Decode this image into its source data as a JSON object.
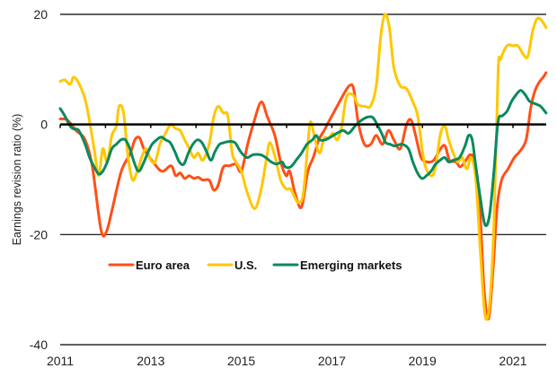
{
  "chart_data": {
    "type": "line",
    "title": "",
    "xlabel": "",
    "ylabel": "Earnings revision ratio (%)",
    "xlim": [
      2011.0,
      2021.73
    ],
    "ylim": [
      -40,
      20
    ],
    "x_ticks": [
      2011,
      2013,
      2015,
      2017,
      2019,
      2021
    ],
    "x_tick_labels": [
      "2011",
      "2013",
      "2015",
      "2017",
      "2019",
      "2021"
    ],
    "y_ticks": [
      20,
      0,
      -20,
      -40
    ],
    "y_tick_labels": [
      "20",
      "0",
      "-20",
      "-40"
    ],
    "grid": "horizontal",
    "zero_line": true,
    "legend": {
      "placement": "lower-left-inside",
      "entries": [
        "Euro area",
        "U.S.",
        "Emerging markets"
      ]
    },
    "series": [
      {
        "name": "Euro area",
        "color": "#ff4f17",
        "points": [
          [
            2011.0,
            1.0
          ],
          [
            2011.16,
            0.8
          ],
          [
            2011.35,
            -1.1
          ],
          [
            2011.55,
            -2.8
          ],
          [
            2011.71,
            -7.7
          ],
          [
            2011.9,
            -19.1
          ],
          [
            2012.02,
            -19.5
          ],
          [
            2012.16,
            -15.0
          ],
          [
            2012.35,
            -8.5
          ],
          [
            2012.55,
            -5.2
          ],
          [
            2012.65,
            -2.8
          ],
          [
            2012.75,
            -2.4
          ],
          [
            2012.85,
            -4.4
          ],
          [
            2013.05,
            -6.8
          ],
          [
            2013.25,
            -8.5
          ],
          [
            2013.45,
            -7.5
          ],
          [
            2013.55,
            -9.3
          ],
          [
            2013.65,
            -8.8
          ],
          [
            2013.75,
            -9.8
          ],
          [
            2013.85,
            -9.3
          ],
          [
            2013.95,
            -9.8
          ],
          [
            2014.05,
            -9.6
          ],
          [
            2014.15,
            -10.1
          ],
          [
            2014.29,
            -10.1
          ],
          [
            2014.39,
            -11.9
          ],
          [
            2014.49,
            -11.0
          ],
          [
            2014.6,
            -7.8
          ],
          [
            2014.74,
            -7.5
          ],
          [
            2014.88,
            -7.2
          ],
          [
            2015.0,
            -8.5
          ],
          [
            2015.14,
            -3.6
          ],
          [
            2015.28,
            0.5
          ],
          [
            2015.44,
            4.1
          ],
          [
            2015.58,
            1.3
          ],
          [
            2015.74,
            -2.0
          ],
          [
            2015.87,
            -6.8
          ],
          [
            2015.99,
            -9.3
          ],
          [
            2016.07,
            -8.5
          ],
          [
            2016.19,
            -12.6
          ],
          [
            2016.33,
            -15.0
          ],
          [
            2016.47,
            -8.5
          ],
          [
            2016.59,
            -6.0
          ],
          [
            2016.71,
            -2.8
          ],
          [
            2016.83,
            -1.1
          ],
          [
            2016.93,
            0.5
          ],
          [
            2017.09,
            2.9
          ],
          [
            2017.22,
            4.9
          ],
          [
            2017.38,
            7.0
          ],
          [
            2017.48,
            6.5
          ],
          [
            2017.58,
            0.5
          ],
          [
            2017.72,
            -3.6
          ],
          [
            2017.86,
            -3.6
          ],
          [
            2017.98,
            -2.0
          ],
          [
            2018.12,
            -3.6
          ],
          [
            2018.25,
            -1.1
          ],
          [
            2018.37,
            -2.8
          ],
          [
            2018.51,
            -4.4
          ],
          [
            2018.65,
            0.0
          ],
          [
            2018.75,
            0.8
          ],
          [
            2018.85,
            -2.0
          ],
          [
            2018.97,
            -6.0
          ],
          [
            2019.11,
            -6.8
          ],
          [
            2019.25,
            -6.5
          ],
          [
            2019.4,
            -4.4
          ],
          [
            2019.5,
            -3.9
          ],
          [
            2019.6,
            -6.5
          ],
          [
            2019.74,
            -6.8
          ],
          [
            2019.84,
            -7.7
          ],
          [
            2019.96,
            -6.5
          ],
          [
            2020.06,
            -5.5
          ],
          [
            2020.16,
            -6.8
          ],
          [
            2020.26,
            -14.1
          ],
          [
            2020.36,
            -29.6
          ],
          [
            2020.46,
            -35.3
          ],
          [
            2020.56,
            -26.4
          ],
          [
            2020.65,
            -15.0
          ],
          [
            2020.75,
            -10.1
          ],
          [
            2020.89,
            -8.1
          ],
          [
            2021.03,
            -6.0
          ],
          [
            2021.15,
            -4.9
          ],
          [
            2021.29,
            -2.8
          ],
          [
            2021.39,
            2.9
          ],
          [
            2021.49,
            6.2
          ],
          [
            2021.59,
            7.8
          ],
          [
            2021.67,
            8.6
          ],
          [
            2021.73,
            9.4
          ]
        ]
      },
      {
        "name": "U.S.",
        "color": "#ffc700",
        "points": [
          [
            2011.0,
            7.8
          ],
          [
            2011.1,
            8.1
          ],
          [
            2011.22,
            7.3
          ],
          [
            2011.3,
            8.6
          ],
          [
            2011.41,
            7.5
          ],
          [
            2011.55,
            4.6
          ],
          [
            2011.65,
            0.5
          ],
          [
            2011.75,
            -4.4
          ],
          [
            2011.85,
            -9.3
          ],
          [
            2011.94,
            -4.4
          ],
          [
            2012.04,
            -6.8
          ],
          [
            2012.14,
            -2.0
          ],
          [
            2012.24,
            -0.3
          ],
          [
            2012.3,
            3.3
          ],
          [
            2012.4,
            2.1
          ],
          [
            2012.5,
            -6.0
          ],
          [
            2012.6,
            -10.1
          ],
          [
            2012.7,
            -8.5
          ],
          [
            2012.8,
            -6.0
          ],
          [
            2012.9,
            -4.4
          ],
          [
            2013.0,
            -6.5
          ],
          [
            2013.1,
            -6.8
          ],
          [
            2013.2,
            -3.6
          ],
          [
            2013.3,
            -2.0
          ],
          [
            2013.44,
            0.0
          ],
          [
            2013.54,
            -0.7
          ],
          [
            2013.65,
            -1.1
          ],
          [
            2013.75,
            -2.8
          ],
          [
            2013.85,
            -4.4
          ],
          [
            2013.95,
            -6.0
          ],
          [
            2014.05,
            -5.2
          ],
          [
            2014.15,
            -6.5
          ],
          [
            2014.29,
            -3.6
          ],
          [
            2014.39,
            1.3
          ],
          [
            2014.49,
            3.3
          ],
          [
            2014.6,
            2.1
          ],
          [
            2014.7,
            1.6
          ],
          [
            2014.8,
            -5.2
          ],
          [
            2014.88,
            -6.8
          ],
          [
            2015.0,
            -8.5
          ],
          [
            2015.14,
            -12.6
          ],
          [
            2015.3,
            -15.3
          ],
          [
            2015.44,
            -11.7
          ],
          [
            2015.56,
            -6.0
          ],
          [
            2015.63,
            -3.3
          ],
          [
            2015.75,
            -6.0
          ],
          [
            2015.87,
            -10.1
          ],
          [
            2015.99,
            -11.7
          ],
          [
            2016.09,
            -11.7
          ],
          [
            2016.19,
            -13.4
          ],
          [
            2016.27,
            -14.2
          ],
          [
            2016.37,
            -12.6
          ],
          [
            2016.47,
            -3.6
          ],
          [
            2016.53,
            0.5
          ],
          [
            2016.63,
            -2.8
          ],
          [
            2016.73,
            -5.2
          ],
          [
            2016.83,
            -2.5
          ],
          [
            2016.93,
            -2.5
          ],
          [
            2017.02,
            -1.6
          ],
          [
            2017.12,
            -2.8
          ],
          [
            2017.22,
            -0.3
          ],
          [
            2017.32,
            4.9
          ],
          [
            2017.46,
            5.4
          ],
          [
            2017.58,
            3.6
          ],
          [
            2017.72,
            3.3
          ],
          [
            2017.86,
            3.4
          ],
          [
            2017.98,
            7.0
          ],
          [
            2018.08,
            16.0
          ],
          [
            2018.17,
            20.0
          ],
          [
            2018.27,
            17.6
          ],
          [
            2018.37,
            10.3
          ],
          [
            2018.51,
            7.0
          ],
          [
            2018.65,
            6.5
          ],
          [
            2018.81,
            3.7
          ],
          [
            2018.9,
            1.3
          ],
          [
            2019.04,
            -6.8
          ],
          [
            2019.19,
            -9.3
          ],
          [
            2019.29,
            -7.7
          ],
          [
            2019.39,
            -2.0
          ],
          [
            2019.49,
            -0.3
          ],
          [
            2019.58,
            -2.8
          ],
          [
            2019.68,
            -5.2
          ],
          [
            2019.78,
            -6.8
          ],
          [
            2019.88,
            -6.0
          ],
          [
            2019.98,
            -8.1
          ],
          [
            2020.08,
            -6.0
          ],
          [
            2020.18,
            -10.1
          ],
          [
            2020.28,
            -23.1
          ],
          [
            2020.38,
            -34.5
          ],
          [
            2020.48,
            -32.9
          ],
          [
            2020.58,
            -18.2
          ],
          [
            2020.67,
            9.4
          ],
          [
            2020.73,
            11.9
          ],
          [
            2020.87,
            14.3
          ],
          [
            2021.01,
            14.3
          ],
          [
            2021.11,
            14.3
          ],
          [
            2021.23,
            12.7
          ],
          [
            2021.33,
            12.4
          ],
          [
            2021.43,
            16.8
          ],
          [
            2021.53,
            19.2
          ],
          [
            2021.63,
            18.9
          ],
          [
            2021.73,
            17.6
          ]
        ]
      },
      {
        "name": "Emerging markets",
        "color": "#0a8a5c",
        "points": [
          [
            2011.0,
            2.9
          ],
          [
            2011.1,
            1.6
          ],
          [
            2011.22,
            -0.3
          ],
          [
            2011.3,
            -0.8
          ],
          [
            2011.41,
            -1.1
          ],
          [
            2011.55,
            -3.6
          ],
          [
            2011.65,
            -6.0
          ],
          [
            2011.75,
            -7.7
          ],
          [
            2011.85,
            -9.0
          ],
          [
            2011.94,
            -8.5
          ],
          [
            2012.04,
            -6.8
          ],
          [
            2012.14,
            -4.4
          ],
          [
            2012.24,
            -3.6
          ],
          [
            2012.34,
            -2.8
          ],
          [
            2012.44,
            -2.8
          ],
          [
            2012.54,
            -4.4
          ],
          [
            2012.63,
            -6.8
          ],
          [
            2012.73,
            -8.5
          ],
          [
            2012.83,
            -7.2
          ],
          [
            2012.93,
            -5.2
          ],
          [
            2013.03,
            -3.6
          ],
          [
            2013.13,
            -2.8
          ],
          [
            2013.23,
            -2.3
          ],
          [
            2013.33,
            -2.8
          ],
          [
            2013.43,
            -3.3
          ],
          [
            2013.53,
            -4.9
          ],
          [
            2013.63,
            -6.8
          ],
          [
            2013.73,
            -7.2
          ],
          [
            2013.83,
            -5.2
          ],
          [
            2013.93,
            -3.6
          ],
          [
            2014.03,
            -2.8
          ],
          [
            2014.13,
            -3.3
          ],
          [
            2014.23,
            -4.9
          ],
          [
            2014.33,
            -6.5
          ],
          [
            2014.42,
            -4.9
          ],
          [
            2014.52,
            -3.6
          ],
          [
            2014.62,
            -3.3
          ],
          [
            2014.72,
            -3.1
          ],
          [
            2014.86,
            -3.3
          ],
          [
            2014.98,
            -4.9
          ],
          [
            2015.12,
            -6.0
          ],
          [
            2015.26,
            -5.5
          ],
          [
            2015.42,
            -5.5
          ],
          [
            2015.54,
            -6.0
          ],
          [
            2015.66,
            -6.8
          ],
          [
            2015.78,
            -7.2
          ],
          [
            2015.9,
            -6.8
          ],
          [
            2015.97,
            -7.7
          ],
          [
            2016.09,
            -7.7
          ],
          [
            2016.21,
            -6.5
          ],
          [
            2016.33,
            -5.2
          ],
          [
            2016.45,
            -3.6
          ],
          [
            2016.57,
            -2.8
          ],
          [
            2016.65,
            -2.0
          ],
          [
            2016.73,
            -2.8
          ],
          [
            2016.85,
            -2.8
          ],
          [
            2016.97,
            -2.3
          ],
          [
            2017.11,
            -1.6
          ],
          [
            2017.25,
            -1.1
          ],
          [
            2017.37,
            -1.6
          ],
          [
            2017.51,
            -0.3
          ],
          [
            2017.61,
            0.5
          ],
          [
            2017.77,
            1.3
          ],
          [
            2017.9,
            1.3
          ],
          [
            2018.0,
            0.0
          ],
          [
            2018.1,
            -1.6
          ],
          [
            2018.19,
            -3.3
          ],
          [
            2018.29,
            -3.6
          ],
          [
            2018.39,
            -3.9
          ],
          [
            2018.55,
            -3.6
          ],
          [
            2018.69,
            -4.4
          ],
          [
            2018.79,
            -6.8
          ],
          [
            2018.89,
            -8.8
          ],
          [
            2018.99,
            -9.8
          ],
          [
            2019.09,
            -9.3
          ],
          [
            2019.19,
            -8.5
          ],
          [
            2019.29,
            -7.2
          ],
          [
            2019.39,
            -6.5
          ],
          [
            2019.49,
            -6.0
          ],
          [
            2019.58,
            -6.8
          ],
          [
            2019.68,
            -6.5
          ],
          [
            2019.82,
            -6.0
          ],
          [
            2019.94,
            -3.9
          ],
          [
            2020.02,
            -2.0
          ],
          [
            2020.1,
            -2.8
          ],
          [
            2020.18,
            -7.7
          ],
          [
            2020.28,
            -13.4
          ],
          [
            2020.38,
            -18.2
          ],
          [
            2020.48,
            -16.6
          ],
          [
            2020.58,
            -8.5
          ],
          [
            2020.67,
            0.5
          ],
          [
            2020.77,
            1.6
          ],
          [
            2020.87,
            2.4
          ],
          [
            2020.97,
            4.2
          ],
          [
            2021.07,
            5.4
          ],
          [
            2021.17,
            6.2
          ],
          [
            2021.27,
            5.4
          ],
          [
            2021.37,
            4.2
          ],
          [
            2021.51,
            3.7
          ],
          [
            2021.61,
            3.3
          ],
          [
            2021.73,
            2.1
          ]
        ]
      }
    ]
  }
}
